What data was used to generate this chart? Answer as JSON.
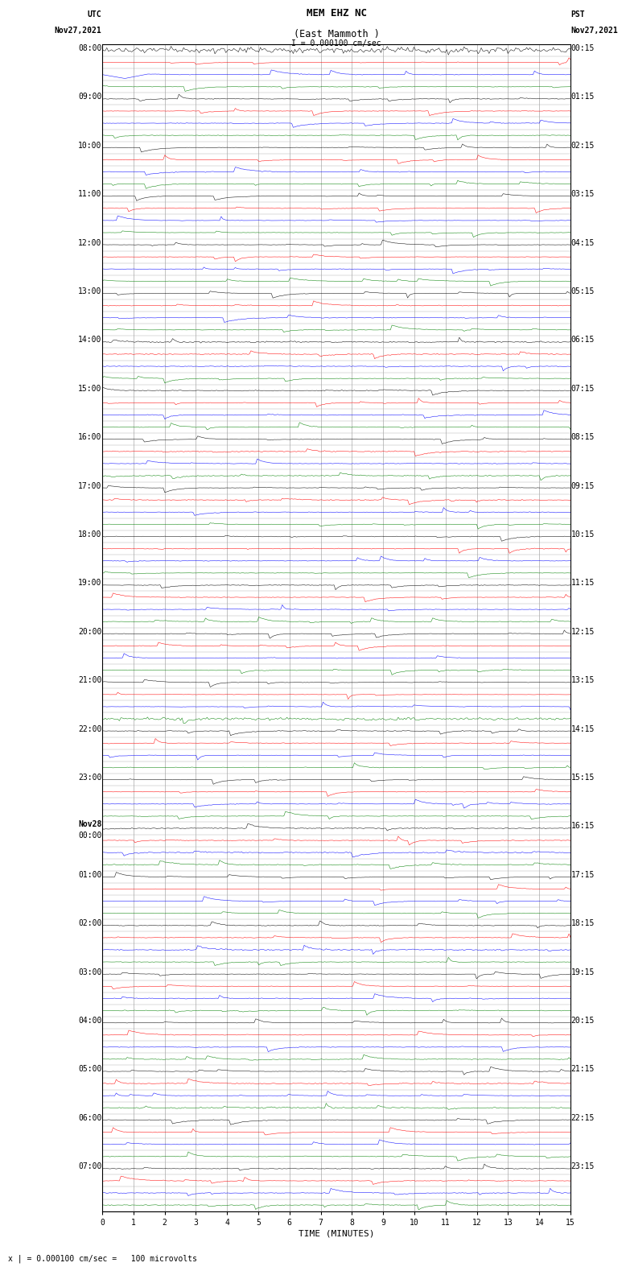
{
  "title_line1": "MEM EHZ NC",
  "title_line2": "(East Mammoth )",
  "scale_text": "I = 0.000100 cm/sec",
  "bottom_label": "TIME (MINUTES)",
  "bottom_note": "x | = 0.000100 cm/sec =   100 microvolts",
  "utc_label": "UTC",
  "utc_date": "Nov27,2021",
  "pst_label": "PST",
  "pst_date": "Nov27,2021",
  "trace_colors": [
    "black",
    "red",
    "blue",
    "green"
  ],
  "x_ticks": [
    0,
    1,
    2,
    3,
    4,
    5,
    6,
    7,
    8,
    9,
    10,
    11,
    12,
    13,
    14,
    15
  ],
  "x_min": 0,
  "x_max": 15,
  "fig_width": 8.5,
  "fig_height": 16.13,
  "bg_color": "white",
  "grid_color": "#aaaaaa",
  "title_fontsize": 9,
  "label_fontsize": 7,
  "tick_fontsize": 7,
  "n_hours": 24,
  "traces_per_hour": 4,
  "n_minutes": 15,
  "samples_per_minute": 20,
  "hour_labels_left": [
    "08:00",
    "09:00",
    "10:00",
    "11:00",
    "12:00",
    "13:00",
    "14:00",
    "15:00",
    "16:00",
    "17:00",
    "18:00",
    "19:00",
    "20:00",
    "21:00",
    "22:00",
    "23:00",
    "Nov28",
    "01:00",
    "02:00",
    "03:00",
    "04:00",
    "05:00",
    "06:00",
    "07:00"
  ],
  "hour_labels_left2": [
    "",
    "",
    "",
    "",
    "",
    "",
    "",
    "",
    "",
    "",
    "",
    "",
    "",
    "",
    "",
    "",
    "00:00",
    "",
    "",
    "",
    "",
    "",
    "",
    ""
  ],
  "hour_labels_right": [
    "00:15",
    "01:15",
    "02:15",
    "03:15",
    "04:15",
    "05:15",
    "06:15",
    "07:15",
    "08:15",
    "09:15",
    "10:15",
    "11:15",
    "12:15",
    "13:15",
    "14:15",
    "15:15",
    "16:15",
    "17:15",
    "18:15",
    "19:15",
    "20:15",
    "21:15",
    "22:15",
    "23:15"
  ]
}
